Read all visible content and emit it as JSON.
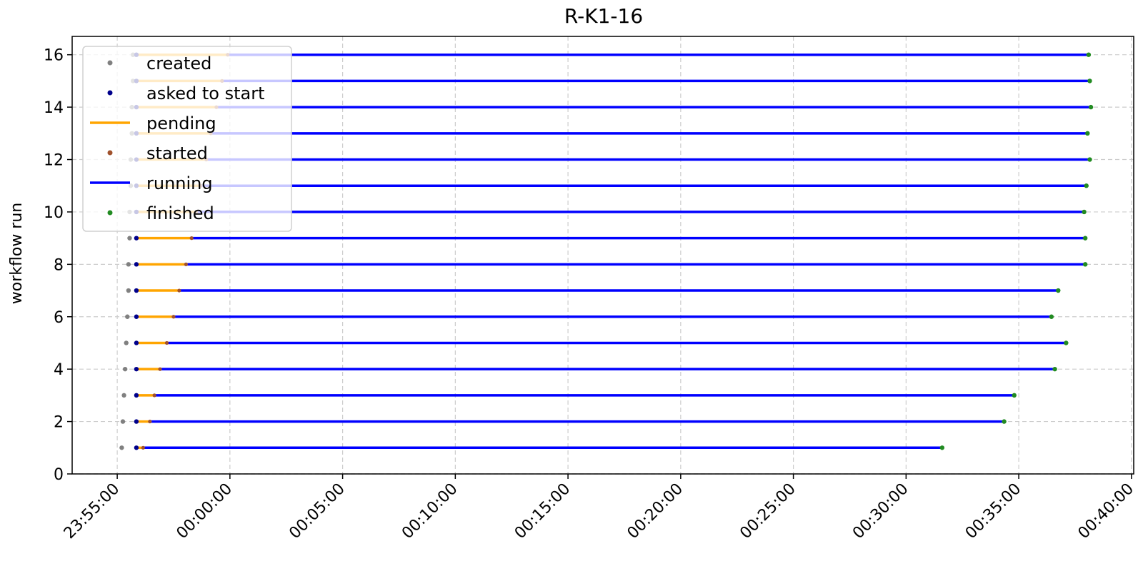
{
  "chart_data": {
    "type": "line",
    "title": "R-K1-16",
    "xlabel": "",
    "ylabel": "workflow run",
    "x_ticks": [
      "23:55:00",
      "00:00:00",
      "00:05:00",
      "00:10:00",
      "00:15:00",
      "00:20:00",
      "00:25:00",
      "00:30:00",
      "00:35:00",
      "00:40:00"
    ],
    "x_tick_minutes": [
      -5,
      0,
      5,
      10,
      15,
      20,
      25,
      30,
      35,
      40
    ],
    "xlim_minutes": [
      -7,
      40.1
    ],
    "y_ticks": [
      0,
      2,
      4,
      6,
      8,
      10,
      12,
      14,
      16
    ],
    "ylim": [
      0,
      16.7
    ],
    "grid": true,
    "legend_position": "upper-left",
    "colors": {
      "created": "#808080",
      "asked to start": "#00008b",
      "pending": "#ffa500",
      "started": "#a0522d",
      "running": "#0000ff",
      "finished": "#228b22"
    },
    "legend": [
      {
        "label": "created",
        "kind": "point",
        "color": "#808080"
      },
      {
        "label": "asked to start",
        "kind": "point",
        "color": "#00008b"
      },
      {
        "label": "pending",
        "kind": "line",
        "color": "#ffa500"
      },
      {
        "label": "started",
        "kind": "point",
        "color": "#a0522d"
      },
      {
        "label": "running",
        "kind": "line",
        "color": "#0000ff"
      },
      {
        "label": "finished",
        "kind": "point",
        "color": "#228b22"
      }
    ],
    "runs": [
      {
        "run": 1,
        "created": -4.8,
        "asked": -4.15,
        "started": -3.85,
        "finished": 31.6
      },
      {
        "run": 2,
        "created": -4.75,
        "asked": -4.15,
        "started": -3.55,
        "finished": 34.35
      },
      {
        "run": 3,
        "created": -4.7,
        "asked": -4.15,
        "started": -3.35,
        "finished": 34.8
      },
      {
        "run": 4,
        "created": -4.65,
        "asked": -4.15,
        "started": -3.1,
        "finished": 36.6
      },
      {
        "run": 5,
        "created": -4.6,
        "asked": -4.15,
        "started": -2.8,
        "finished": 37.1
      },
      {
        "run": 6,
        "created": -4.55,
        "asked": -4.15,
        "started": -2.5,
        "finished": 36.45
      },
      {
        "run": 7,
        "created": -4.5,
        "asked": -4.15,
        "started": -2.25,
        "finished": 36.75
      },
      {
        "run": 8,
        "created": -4.5,
        "asked": -4.15,
        "started": -1.95,
        "finished": 37.95
      },
      {
        "run": 9,
        "created": -4.45,
        "asked": -4.15,
        "started": -1.7,
        "finished": 37.95
      },
      {
        "run": 10,
        "created": -4.45,
        "asked": -4.15,
        "started": -1.5,
        "finished": 37.9
      },
      {
        "run": 11,
        "created": -4.4,
        "asked": -4.15,
        "started": -1.3,
        "finished": 38.0
      },
      {
        "run": 12,
        "created": -4.4,
        "asked": -4.15,
        "started": -1.05,
        "finished": 38.15
      },
      {
        "run": 13,
        "created": -4.35,
        "asked": -4.15,
        "started": -0.85,
        "finished": 38.05
      },
      {
        "run": 14,
        "created": -4.35,
        "asked": -4.15,
        "started": -0.6,
        "finished": 38.2
      },
      {
        "run": 15,
        "created": -4.3,
        "asked": -4.15,
        "started": -0.35,
        "finished": 38.15
      },
      {
        "run": 16,
        "created": -4.3,
        "asked": -4.15,
        "started": -0.1,
        "finished": 38.1
      }
    ]
  }
}
